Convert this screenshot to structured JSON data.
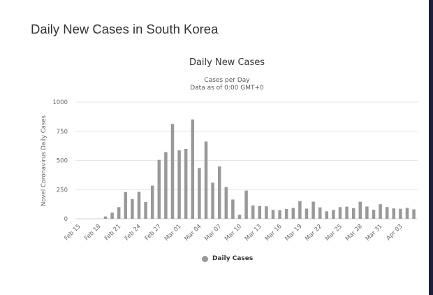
{
  "page_title": "Daily New Cases in South Korea",
  "chart_data": {
    "type": "bar",
    "title": "Daily New Cases",
    "subtitle": "Cases per Day",
    "subtitle2": "Data as of 0:00 GMT+0",
    "ylabel": "Novel Coronavirus Daily Cases",
    "xlabel": "",
    "ylim": [
      0,
      1000
    ],
    "yticks": [
      "0",
      "250",
      "500",
      "750",
      "1000"
    ],
    "grid": true,
    "legend_position": "bottom",
    "bar_color": "#999999",
    "categories": [
      "Feb 15",
      "Feb 16",
      "Feb 17",
      "Feb 18",
      "Feb 19",
      "Feb 20",
      "Feb 21",
      "Feb 22",
      "Feb 23",
      "Feb 24",
      "Feb 25",
      "Feb 26",
      "Feb 27",
      "Feb 28",
      "Feb 29",
      "Mar 01",
      "Mar 02",
      "Mar 03",
      "Mar 04",
      "Mar 05",
      "Mar 06",
      "Mar 07",
      "Mar 08",
      "Mar 09",
      "Mar 10",
      "Mar 11",
      "Mar 12",
      "Mar 13",
      "Mar 14",
      "Mar 15",
      "Mar 16",
      "Mar 17",
      "Mar 18",
      "Mar 19",
      "Mar 20",
      "Mar 21",
      "Mar 22",
      "Mar 23",
      "Mar 24",
      "Mar 25",
      "Mar 26",
      "Mar 27",
      "Mar 28",
      "Mar 29",
      "Mar 30",
      "Mar 31",
      "Apr 01",
      "Apr 02",
      "Apr 03",
      "Apr 04",
      "Apr 05"
    ],
    "xtick_labels": [
      "Feb 15",
      "Feb 18",
      "Feb 21",
      "Feb 24",
      "Feb 27",
      "Mar 01",
      "Mar 04",
      "Mar 07",
      "Mar 10",
      "Mar 13",
      "Mar 16",
      "Mar 19",
      "Mar 22",
      "Mar 25",
      "Mar 28",
      "Mar 31",
      "Apr 03"
    ],
    "series": [
      {
        "name": "Daily Cases",
        "values": [
          0,
          0,
          0,
          1,
          20,
          53,
          100,
          229,
          169,
          231,
          144,
          284,
          505,
          571,
          813,
          586,
          599,
          851,
          435,
          662,
          309,
          448,
          272,
          165,
          35,
          242,
          114,
          110,
          107,
          76,
          74,
          84,
          93,
          152,
          87,
          147,
          98,
          64,
          76,
          100,
          104,
          91,
          146,
          105,
          78,
          125,
          101,
          89,
          86,
          94,
          81
        ]
      }
    ]
  }
}
